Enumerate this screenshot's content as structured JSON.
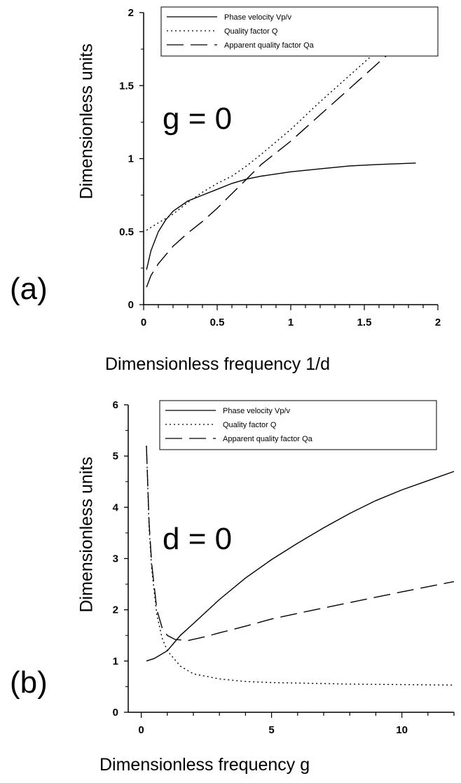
{
  "chart_data": [
    {
      "type": "line",
      "panel_label": "(a)",
      "annotation": "g = 0",
      "xlabel": "Dimensionless frequency 1/d",
      "ylabel": "Dimensionless units",
      "xlim": [
        0,
        2
      ],
      "ylim": [
        0,
        2
      ],
      "xticks": [
        "0",
        "0.5",
        "1",
        "1.5",
        "2"
      ],
      "yticks": [
        "0",
        "0.5",
        "1",
        "1.5",
        "2"
      ],
      "grid": false,
      "legend_position": "top-right",
      "series": [
        {
          "name": "Phase velocity Vp/v",
          "style": "solid",
          "x": [
            0.02,
            0.05,
            0.1,
            0.15,
            0.2,
            0.3,
            0.4,
            0.5,
            0.6,
            0.7,
            0.8,
            1.0,
            1.2,
            1.4,
            1.6,
            1.85
          ],
          "y": [
            0.24,
            0.37,
            0.5,
            0.58,
            0.64,
            0.71,
            0.75,
            0.79,
            0.83,
            0.86,
            0.88,
            0.91,
            0.93,
            0.95,
            0.96,
            0.97
          ]
        },
        {
          "name": "Quality factor Q",
          "style": "dotted",
          "x": [
            0.02,
            0.1,
            0.2,
            0.3,
            0.4,
            0.5,
            0.6,
            0.7,
            0.8,
            1.0,
            1.2,
            1.4,
            1.6,
            1.85
          ],
          "y": [
            0.51,
            0.56,
            0.62,
            0.7,
            0.77,
            0.83,
            0.88,
            0.95,
            1.03,
            1.2,
            1.39,
            1.57,
            1.75,
            1.99
          ]
        },
        {
          "name": "Apparent quality factor Qa",
          "style": "dashed",
          "x": [
            0.02,
            0.05,
            0.1,
            0.2,
            0.3,
            0.4,
            0.5,
            0.6,
            0.7,
            0.8,
            1.0,
            1.2,
            1.4,
            1.6,
            1.85
          ],
          "y": [
            0.12,
            0.2,
            0.28,
            0.4,
            0.49,
            0.57,
            0.66,
            0.76,
            0.86,
            0.96,
            1.12,
            1.3,
            1.48,
            1.66,
            1.88
          ]
        }
      ]
    },
    {
      "type": "line",
      "panel_label": "(b)",
      "annotation": "d = 0",
      "xlabel": "Dimensionless frequency  g",
      "ylabel": "Dimensionless units",
      "xlim": [
        -0.5,
        12
      ],
      "ylim": [
        0,
        6
      ],
      "xticks": [
        "0",
        "5",
        "10"
      ],
      "yticks": [
        "0",
        "1",
        "2",
        "3",
        "4",
        "5",
        "6"
      ],
      "grid": false,
      "legend_position": "top-right",
      "series": [
        {
          "name": "Phase velocity Vp/v",
          "style": "solid",
          "x": [
            0.2,
            0.5,
            1,
            1.5,
            2,
            3,
            4,
            5,
            6,
            7,
            8,
            9,
            10,
            11,
            12
          ],
          "y": [
            1.0,
            1.05,
            1.2,
            1.5,
            1.73,
            2.2,
            2.62,
            2.98,
            3.3,
            3.6,
            3.88,
            4.13,
            4.34,
            4.52,
            4.7
          ]
        },
        {
          "name": "Quality factor Q",
          "style": "dotted",
          "x": [
            0.2,
            0.3,
            0.4,
            0.6,
            0.8,
            1.0,
            1.5,
            2,
            3,
            4,
            5,
            6,
            8,
            10,
            12
          ],
          "y": [
            5.2,
            3.6,
            2.8,
            1.9,
            1.45,
            1.2,
            0.9,
            0.75,
            0.65,
            0.6,
            0.58,
            0.57,
            0.55,
            0.54,
            0.53
          ]
        },
        {
          "name": "Apparent quality factor Qa",
          "style": "dashed",
          "x": [
            0.2,
            0.3,
            0.4,
            0.6,
            0.8,
            1.0,
            1.3,
            1.8,
            2.5,
            3,
            4,
            5,
            6,
            8,
            10,
            12
          ],
          "y": [
            5.2,
            3.7,
            2.9,
            2.0,
            1.65,
            1.5,
            1.42,
            1.4,
            1.48,
            1.55,
            1.68,
            1.82,
            1.93,
            2.14,
            2.35,
            2.55
          ]
        }
      ]
    }
  ]
}
